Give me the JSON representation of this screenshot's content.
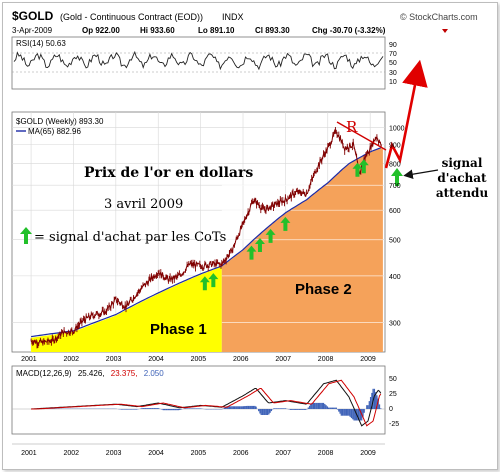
{
  "header": {
    "symbol": "$GOLD",
    "description": "(Gold - Continuous Contract (EOD))",
    "exchange": "INDX",
    "copyright": "© StockCharts.com",
    "date": "3-Apr-2009",
    "open": "Op 922.00",
    "high": "Hi 933.60",
    "low": "Lo 891.10",
    "close": "Cl 893.30",
    "change": "Chg -30.70 (-3.32%)"
  },
  "rsi_panel": {
    "label": "RSI(14) 50.63",
    "ticks": [
      "90",
      "70",
      "50",
      "30",
      "10"
    ]
  },
  "price_panel": {
    "label": "$GOLD (Weekly) 893.30",
    "ma_label": "MA(65) 882.96",
    "ticks": [
      "1000",
      "900",
      "800",
      "700",
      "600",
      "500",
      "400",
      "300"
    ]
  },
  "annotations": {
    "title": "Prix de l'or en dollars",
    "date": "3 avril 2009",
    "legend": "= signal d'achat par les CoTs",
    "phase1": "Phase 1",
    "phase2": "Phase 2",
    "r_label": "R",
    "signal_line1": "signal",
    "signal_line2": "d'achat",
    "signal_line3": "attendu"
  },
  "macd_panel": {
    "label_prefix": "MACD(12,26,9)",
    "value1": "25.426,",
    "value2": "23.375,",
    "value3": "2.050",
    "ticks": [
      "50",
      "25",
      "0",
      "-25"
    ]
  },
  "x_axis": {
    "years": [
      "2001",
      "2002",
      "2003",
      "2004",
      "2005",
      "2006",
      "2007",
      "2008",
      "2009"
    ]
  },
  "colors": {
    "price": "#800000",
    "ma": "#1c2aa6",
    "phase1": "#ffff00",
    "phase2": "#f5a25a",
    "arrow": "#e00000",
    "signal_arrow": "#22c02a",
    "macd_signal": "#d00000",
    "histogram": "#3f63b8"
  },
  "chart_data": {
    "type": "line",
    "title": "Prix de l'or en dollars",
    "subtitle": "3 avril 2009",
    "x": [
      "2001",
      "2002",
      "2003",
      "2004",
      "2005",
      "2006",
      "2007",
      "2008",
      "2009"
    ],
    "series": [
      {
        "name": "$GOLD (Weekly)",
        "values": [
          [
            2001.0,
            268
          ],
          [
            2001.25,
            265
          ],
          [
            2001.5,
            268
          ],
          [
            2001.75,
            282
          ],
          [
            2002.0,
            285
          ],
          [
            2002.25,
            305
          ],
          [
            2002.5,
            315
          ],
          [
            2002.75,
            320
          ],
          [
            2003.0,
            345
          ],
          [
            2003.25,
            330
          ],
          [
            2003.5,
            360
          ],
          [
            2003.75,
            385
          ],
          [
            2004.0,
            410
          ],
          [
            2004.25,
            390
          ],
          [
            2004.5,
            400
          ],
          [
            2004.75,
            430
          ],
          [
            2005.0,
            425
          ],
          [
            2005.25,
            430
          ],
          [
            2005.5,
            430
          ],
          [
            2005.75,
            470
          ],
          [
            2006.0,
            550
          ],
          [
            2006.25,
            640
          ],
          [
            2006.5,
            600
          ],
          [
            2006.75,
            620
          ],
          [
            2007.0,
            640
          ],
          [
            2007.25,
            670
          ],
          [
            2007.5,
            665
          ],
          [
            2007.75,
            780
          ],
          [
            2008.0,
            880
          ],
          [
            2008.2,
            980
          ],
          [
            2008.4,
            880
          ],
          [
            2008.6,
            900
          ],
          [
            2008.75,
            750
          ],
          [
            2008.85,
            820
          ],
          [
            2009.0,
            880
          ],
          [
            2009.15,
            950
          ],
          [
            2009.26,
            893
          ]
        ]
      },
      {
        "name": "MA(65)",
        "values": [
          [
            2001.0,
            275
          ],
          [
            2002.0,
            285
          ],
          [
            2003.0,
            315
          ],
          [
            2004.0,
            360
          ],
          [
            2005.0,
            405
          ],
          [
            2005.5,
            425
          ],
          [
            2006.0,
            470
          ],
          [
            2006.5,
            530
          ],
          [
            2007.0,
            590
          ],
          [
            2007.5,
            640
          ],
          [
            2008.0,
            710
          ],
          [
            2008.5,
            800
          ],
          [
            2009.0,
            860
          ],
          [
            2009.26,
            883
          ]
        ]
      }
    ],
    "ylim": [
      250,
      1100
    ],
    "rsi": {
      "label": "RSI(14)",
      "last": 50.63,
      "ylim": [
        0,
        100
      ]
    },
    "macd": {
      "label": "MACD(12,26,9)",
      "macd": 25.426,
      "signal": 23.375,
      "histogram": 2.05,
      "ylim": [
        -40,
        60
      ]
    },
    "buy_signals_cot": [
      2005.1,
      2005.3,
      2006.2,
      2006.4,
      2006.65,
      2007.0,
      2008.7,
      2008.85
    ],
    "phases": [
      {
        "name": "Phase 1",
        "start": 2001.0,
        "end": 2005.5
      },
      {
        "name": "Phase 2",
        "start": 2005.5,
        "end": 2009.3
      }
    ],
    "grid": true
  }
}
